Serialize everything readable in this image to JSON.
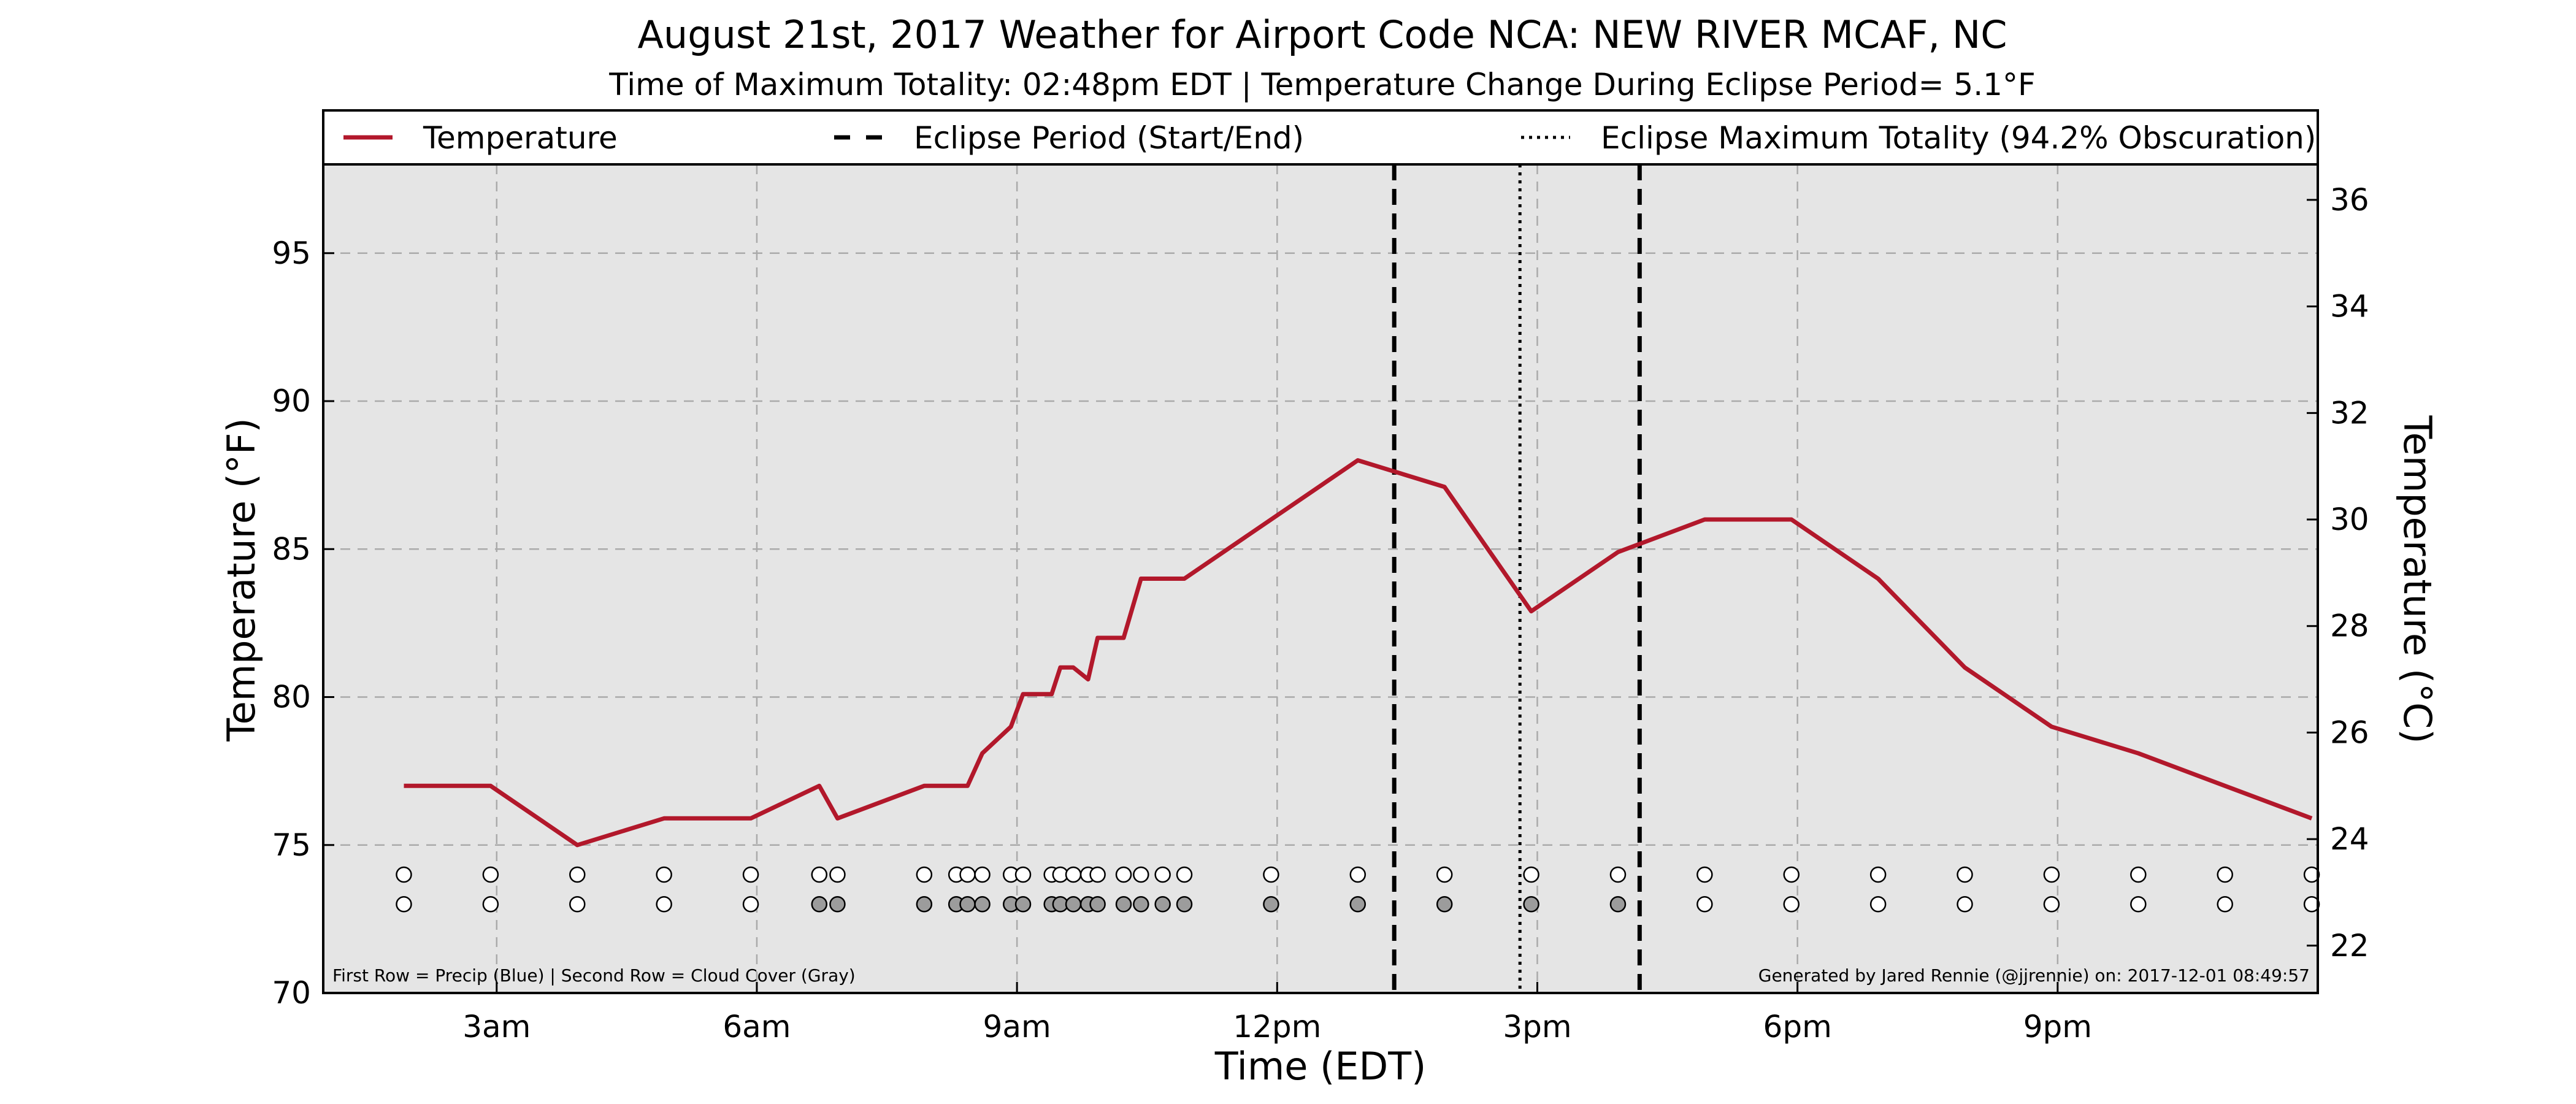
{
  "chart_data": {
    "type": "line",
    "title": "August 21st, 2017 Weather for Airport Code NCA: NEW RIVER MCAF, NC",
    "subtitle": "Time of Maximum Totality: 02:48pm EDT | Temperature Change During Eclipse Period= 5.1°F",
    "xlabel": "Time (EDT)",
    "ylabel": "Temperature (°F)",
    "y2label": "Temperature (°C)",
    "xlim": [
      1.0,
      24.0
    ],
    "ylim": [
      70,
      98
    ],
    "y2lim": [
      21.111,
      36.667
    ],
    "grid": true,
    "legend_position": "top",
    "legend": [
      {
        "label": "Temperature",
        "style": "solid"
      },
      {
        "label": "Eclipse Period (Start/End)",
        "style": "dashed"
      },
      {
        "label": "Eclipse Maximum Totality (94.2% Obscuration)",
        "style": "dotted"
      }
    ],
    "x_ticks": [
      {
        "value": 3,
        "label": "3am"
      },
      {
        "value": 6,
        "label": "6am"
      },
      {
        "value": 9,
        "label": "9am"
      },
      {
        "value": 12,
        "label": "12pm"
      },
      {
        "value": 15,
        "label": "3pm"
      },
      {
        "value": 18,
        "label": "6pm"
      },
      {
        "value": 21,
        "label": "9pm"
      }
    ],
    "y_ticks": [
      70,
      75,
      80,
      85,
      90,
      95
    ],
    "y2_ticks": [
      22,
      24,
      26,
      28,
      30,
      32,
      34,
      36
    ],
    "series": [
      {
        "name": "Temperature",
        "color": "#b2182b",
        "x": [
          1.93,
          2.93,
          3.93,
          4.93,
          5.93,
          6.72,
          6.93,
          7.93,
          8.43,
          8.6,
          8.93,
          9.07,
          9.4,
          9.5,
          9.65,
          9.82,
          9.93,
          10.23,
          10.43,
          10.93,
          11.93,
          12.93,
          13.93,
          14.93,
          15.93,
          16.93,
          17.93,
          18.93,
          19.93,
          20.93,
          21.93,
          22.93,
          23.93
        ],
        "values": [
          77,
          77,
          75,
          75.9,
          75.9,
          77,
          75.9,
          77,
          77,
          78.1,
          79,
          80.1,
          80.1,
          81,
          81,
          80.6,
          82,
          82,
          84,
          84,
          86,
          88,
          87.1,
          82.9,
          84.9,
          86,
          86,
          84,
          81,
          79,
          78.1,
          77,
          75.9
        ]
      }
    ],
    "eclipse_start": 13.35,
    "eclipse_max": 14.8,
    "eclipse_end": 16.18,
    "obs_rows": {
      "precip": {
        "y": 74.0,
        "x": [
          1.93,
          2.93,
          3.93,
          4.93,
          5.93,
          6.72,
          6.93,
          7.93,
          8.3,
          8.43,
          8.6,
          8.93,
          9.07,
          9.4,
          9.5,
          9.65,
          9.82,
          9.93,
          10.23,
          10.43,
          10.68,
          10.93,
          11.93,
          12.93,
          13.93,
          14.93,
          15.93,
          16.93,
          17.93,
          18.93,
          19.93,
          20.93,
          21.93,
          22.93,
          23.93
        ]
      },
      "cloud": {
        "y": 73.0,
        "x": [
          1.93,
          2.93,
          3.93,
          4.93,
          5.93,
          6.72,
          6.93,
          7.93,
          8.3,
          8.43,
          8.6,
          8.93,
          9.07,
          9.4,
          9.5,
          9.65,
          9.82,
          9.93,
          10.23,
          10.43,
          10.68,
          10.93,
          11.93,
          12.93,
          13.93,
          14.93,
          15.93,
          16.93,
          17.93,
          18.93,
          19.93,
          20.93,
          21.93,
          22.93,
          23.93
        ],
        "gray": [
          false,
          false,
          false,
          false,
          false,
          true,
          true,
          true,
          true,
          true,
          true,
          true,
          true,
          true,
          true,
          true,
          true,
          true,
          true,
          true,
          true,
          true,
          true,
          true,
          true,
          true,
          true,
          false,
          false,
          false,
          false,
          false,
          false,
          false,
          false
        ]
      }
    },
    "colors": {
      "plot_bg": "#e5e5e5",
      "line": "#b2182b",
      "marker_gray": "#9c9c9c",
      "grid": "#aaaaaa"
    }
  },
  "footnote_left": "First Row = Precip (Blue) | Second Row = Cloud Cover (Gray)",
  "footnote_right": "Generated by Jared Rennie (@jjrennie) on: 2017-12-01 08:49:57"
}
